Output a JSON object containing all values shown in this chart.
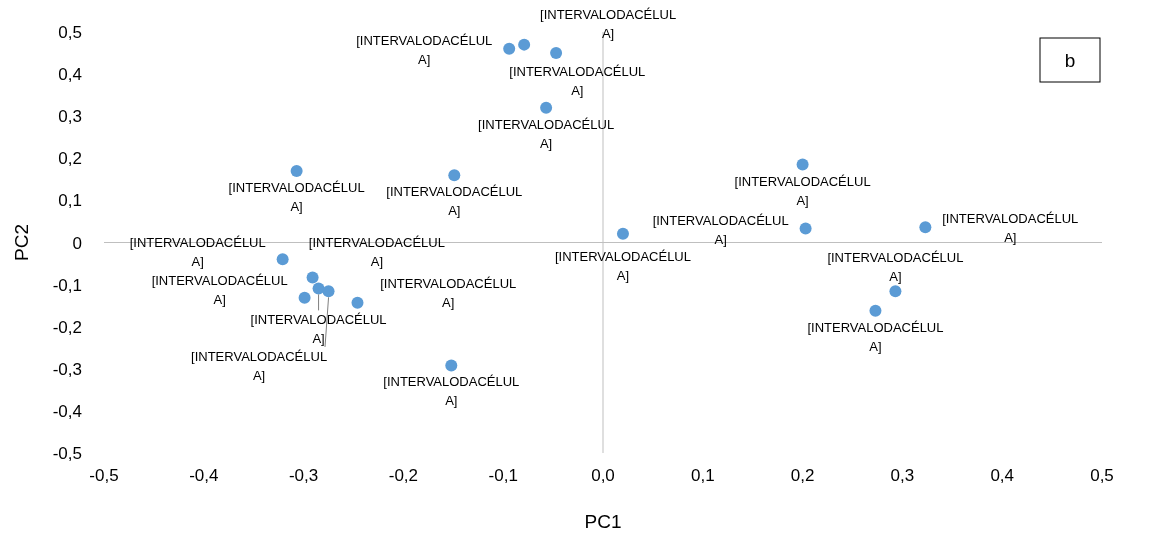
{
  "chart_data": {
    "type": "scatter",
    "xlabel": "PC1",
    "ylabel": "PC2",
    "marker": "circle",
    "xlim": [
      -0.5,
      0.5
    ],
    "ylim": [
      -0.5,
      0.5
    ],
    "xticks": [
      {
        "value": -0.5,
        "label": "-0,5"
      },
      {
        "value": -0.4,
        "label": "-0,4"
      },
      {
        "value": -0.3,
        "label": "-0,3"
      },
      {
        "value": -0.2,
        "label": "-0,2"
      },
      {
        "value": -0.1,
        "label": "-0,1"
      },
      {
        "value": 0,
        "label": "0,0"
      },
      {
        "value": 0.1,
        "label": "0,1"
      },
      {
        "value": 0.2,
        "label": "0,2"
      },
      {
        "value": 0.3,
        "label": "0,3"
      },
      {
        "value": 0.4,
        "label": "0,4"
      },
      {
        "value": 0.5,
        "label": "0,5"
      }
    ],
    "yticks": [
      {
        "value": 0.5,
        "label": "0,5"
      },
      {
        "value": 0.4,
        "label": "0,4"
      },
      {
        "value": 0.3,
        "label": "0,3"
      },
      {
        "value": 0.2,
        "label": "0,2"
      },
      {
        "value": 0.1,
        "label": "0,1"
      },
      {
        "value": 0,
        "label": "0"
      },
      {
        "value": -0.1,
        "label": "-0,1"
      },
      {
        "value": -0.2,
        "label": "-0,2"
      },
      {
        "value": -0.3,
        "label": "-0,3"
      },
      {
        "value": -0.4,
        "label": "-0,4"
      },
      {
        "value": -0.5,
        "label": "-0,5"
      }
    ],
    "series": [
      {
        "color": "#5b9bd5",
        "x": [
          -0.094,
          -0.079,
          -0.047,
          -0.057,
          -0.307,
          -0.149,
          0.2,
          0.203,
          0.323,
          0.02,
          -0.321,
          -0.291,
          -0.285,
          -0.275,
          -0.299,
          -0.246,
          -0.152,
          0.273,
          0.293
        ],
        "values": [
          0.46,
          0.47,
          0.45,
          0.32,
          0.17,
          0.16,
          0.185,
          0.033,
          0.036,
          0.021,
          -0.04,
          -0.083,
          -0.109,
          -0.116,
          -0.131,
          -0.143,
          -0.292,
          -0.162,
          -0.116
        ],
        "value_labels": [
          "[INTERVALODACÉLUL A]",
          "[INTERVALODACÉLUL A]",
          "[INTERVALODACÉLUL A]",
          "[INTERVALODACÉLUL A]",
          "[INTERVALODACÉLUL A]",
          "[INTERVALODACÉLUL A]",
          "[INTERVALODACÉLUL A]",
          "[INTERVALODACÉLUL A]",
          "[INTERVALODACÉLUL A]",
          "[INTERVALODACÉLUL A]",
          "[INTERVALODACÉLUL A]",
          "[INTERVALODACÉLUL A]",
          "[INTERVALODACÉLUL A]",
          "[INTERVALODACÉLUL A]",
          "[INTERVALODACÉLUL A]",
          "[INTERVALODACÉLUL A]",
          "[INTERVALODACÉLUL A]",
          "[INTERVALODACÉLUL A]",
          "[INTERVALODACÉLUL A]"
        ]
      }
    ],
    "annotations": [
      "b"
    ]
  }
}
